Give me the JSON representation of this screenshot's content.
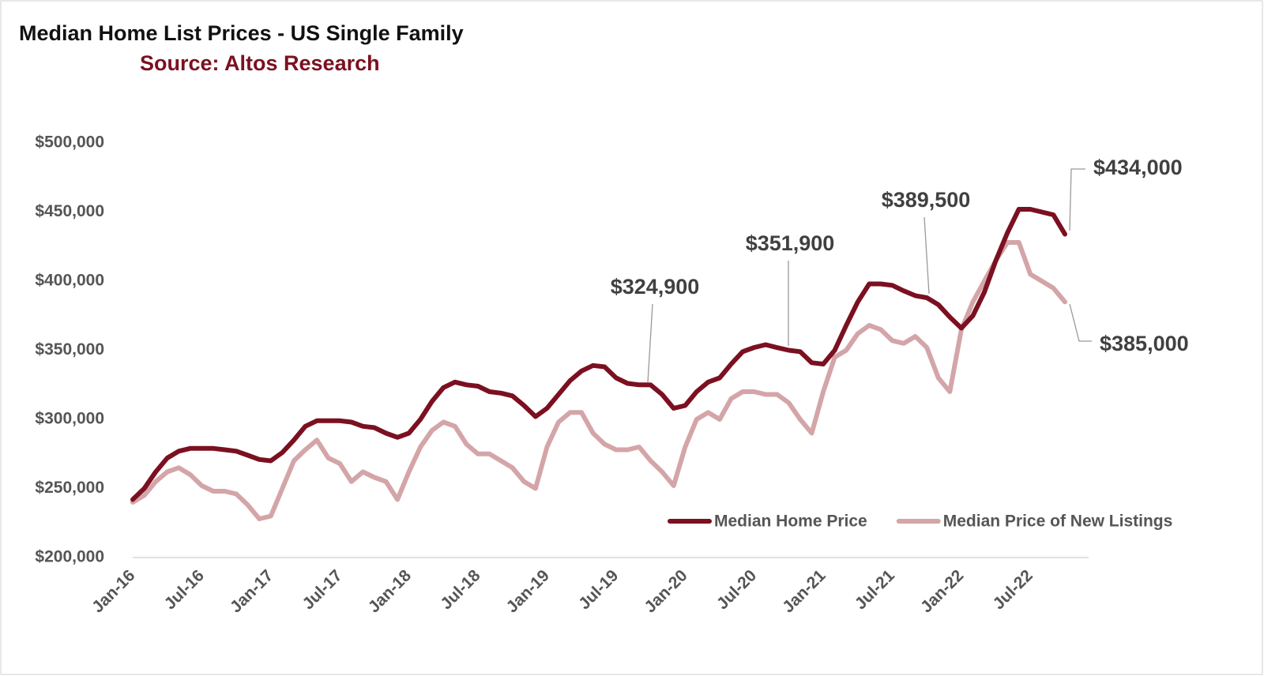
{
  "chart_data": {
    "type": "line",
    "title": "Median Home List Prices - US Single Family",
    "subtitle": "Source: Altos Research",
    "categories": [
      "Jan-16",
      null,
      null,
      null,
      null,
      null,
      "Jul-16",
      null,
      null,
      null,
      null,
      null,
      "Jan-17",
      null,
      null,
      null,
      null,
      null,
      "Jul-17",
      null,
      null,
      null,
      null,
      null,
      "Jan-18",
      null,
      null,
      null,
      null,
      null,
      "Jul-18",
      null,
      null,
      null,
      null,
      null,
      "Jan-19",
      null,
      null,
      null,
      null,
      null,
      "Jul-19",
      null,
      null,
      null,
      null,
      null,
      "Jan-20",
      null,
      null,
      null,
      null,
      null,
      "Jul-20",
      null,
      null,
      null,
      null,
      null,
      "Jan-21",
      null,
      null,
      null,
      null,
      null,
      "Jul-21",
      null,
      null,
      null,
      null,
      null,
      "Jan-22",
      null,
      null,
      null,
      null,
      null,
      "Jul-22",
      null,
      null,
      null
    ],
    "series": [
      {
        "name": "Median Home Price",
        "color": "#7b1020",
        "values": [
          242000,
          250000,
          262000,
          272000,
          277000,
          279000,
          279000,
          279000,
          278000,
          277000,
          274000,
          271000,
          270000,
          276000,
          285000,
          295000,
          299000,
          299000,
          299000,
          298000,
          295000,
          294000,
          290000,
          287000,
          290000,
          300000,
          313000,
          323000,
          327000,
          325000,
          324000,
          320000,
          319000,
          317000,
          310000,
          302000,
          308000,
          318000,
          328000,
          335000,
          339000,
          338000,
          330000,
          326000,
          325000,
          324900,
          318000,
          308000,
          310000,
          320000,
          327000,
          330000,
          340000,
          349000,
          352000,
          354000,
          351900,
          350000,
          349000,
          341000,
          340000,
          350000,
          368000,
          385000,
          398000,
          398000,
          397000,
          393000,
          389500,
          388000,
          383000,
          374000,
          366000,
          375000,
          392000,
          415000,
          435000,
          452000,
          452000,
          450000,
          448000,
          434000
        ]
      },
      {
        "name": "Median Price of New Listings",
        "color": "#d4a5a8",
        "values": [
          240000,
          245000,
          255000,
          262000,
          265000,
          260000,
          252000,
          248000,
          248000,
          246000,
          238000,
          228000,
          230000,
          250000,
          270000,
          278000,
          285000,
          272000,
          268000,
          255000,
          262000,
          258000,
          255000,
          242000,
          262000,
          280000,
          292000,
          298000,
          295000,
          282000,
          275000,
          275000,
          270000,
          265000,
          255000,
          250000,
          280000,
          298000,
          305000,
          305000,
          290000,
          282000,
          278000,
          278000,
          280000,
          270000,
          262000,
          252000,
          280000,
          300000,
          305000,
          300000,
          315000,
          320000,
          320000,
          318000,
          318000,
          312000,
          300000,
          290000,
          320000,
          345000,
          350000,
          362000,
          368000,
          365000,
          357000,
          355000,
          360000,
          352000,
          330000,
          320000,
          365000,
          385000,
          400000,
          415000,
          428000,
          428000,
          405000,
          400000,
          395000,
          385000
        ]
      }
    ],
    "annotations": [
      "$324,900",
      "$351,900",
      "$389,500",
      "$434,000",
      "$385,000"
    ],
    "ylim": [
      200000,
      500000
    ],
    "yticks": [
      {
        "value": 200000,
        "label": "$200,000"
      },
      {
        "value": 250000,
        "label": "$250,000"
      },
      {
        "value": 300000,
        "label": "$300,000"
      },
      {
        "value": 350000,
        "label": "$350,000"
      },
      {
        "value": 400000,
        "label": "$400,000"
      },
      {
        "value": 450000,
        "label": "$450,000"
      },
      {
        "value": 500000,
        "label": "$500,000"
      }
    ],
    "grid": false,
    "legend": "lower right"
  }
}
